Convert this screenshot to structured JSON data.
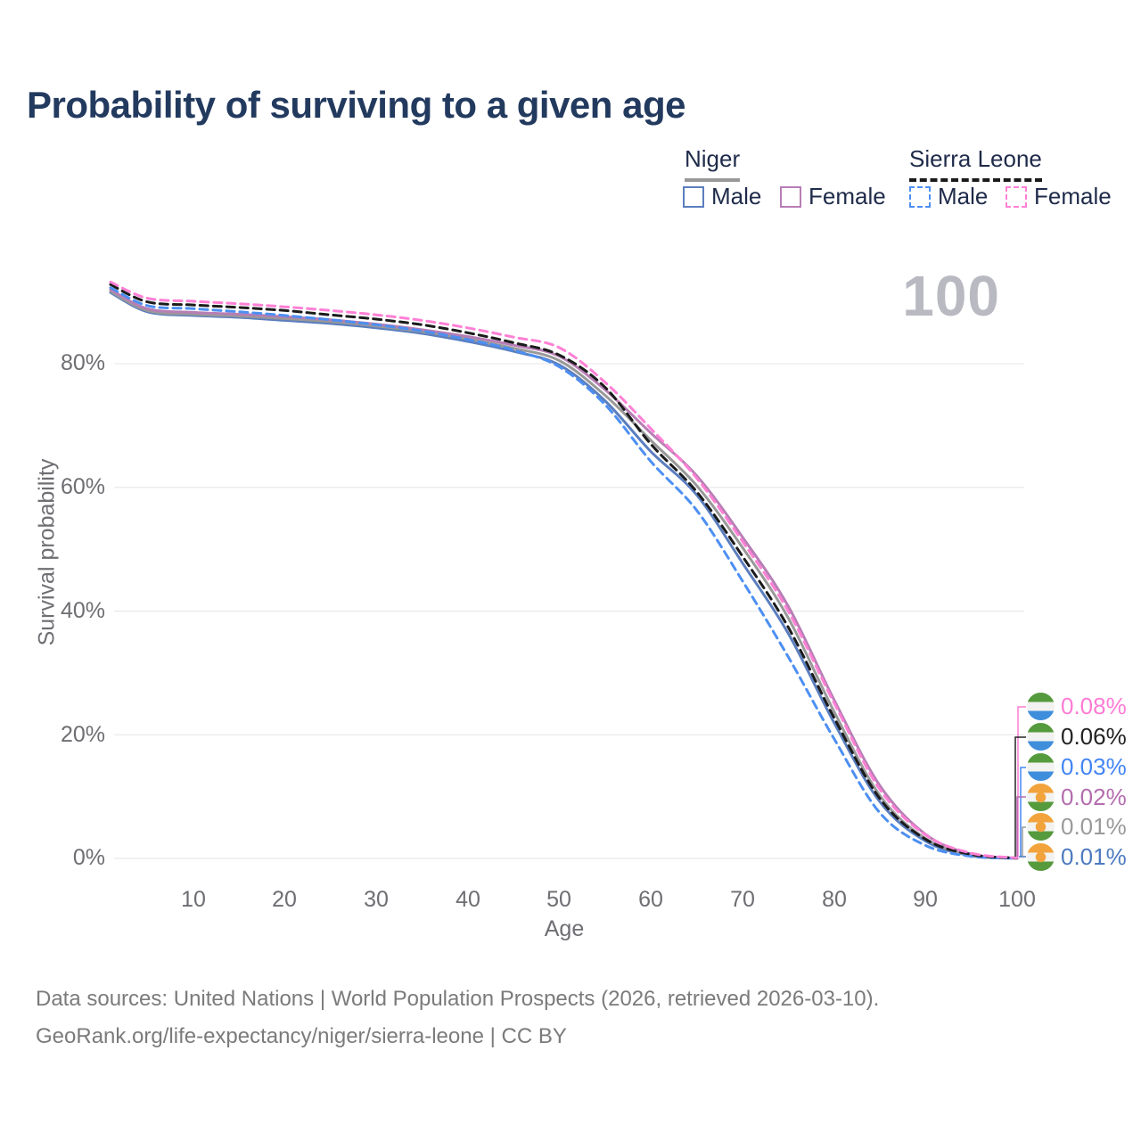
{
  "title": "Probability of surviving to a given age",
  "age_indicator": "100",
  "legend": {
    "groups": [
      {
        "label": "Niger",
        "line_style": "solid",
        "line_color": "#999999",
        "items": [
          {
            "label": "Male",
            "color": "#5B7EBE",
            "dash": false
          },
          {
            "label": "Female",
            "color": "#B77EB5",
            "dash": false
          }
        ]
      },
      {
        "label": "Sierra Leone",
        "line_style": "dashed",
        "line_color": "#1B1B1B",
        "items": [
          {
            "label": "Male",
            "color": "#4D8FF2",
            "dash": true
          },
          {
            "label": "Female",
            "color": "#FF80D5",
            "dash": true
          }
        ]
      }
    ]
  },
  "chart_data": {
    "type": "line",
    "title": "Probability of surviving to a given age",
    "xlabel": "Age",
    "ylabel": "Survival probability",
    "xlim": [
      1,
      100
    ],
    "ylim": [
      0,
      100
    ],
    "grid": "horizontal-only",
    "legend_position": "top-right",
    "x": [
      1,
      5,
      10,
      15,
      20,
      25,
      30,
      35,
      40,
      45,
      50,
      55,
      60,
      65,
      70,
      75,
      80,
      85,
      90,
      95,
      100
    ],
    "xticks": [
      10,
      20,
      30,
      40,
      50,
      60,
      70,
      80,
      90,
      100
    ],
    "xtick_labels": [
      "10",
      "20",
      "30",
      "40",
      "50",
      "60",
      "70",
      "80",
      "90",
      "100"
    ],
    "yticks": [
      0,
      20,
      40,
      60,
      80
    ],
    "ytick_labels": [
      "0%",
      "20%",
      "40%",
      "60%",
      "80%"
    ],
    "series": [
      {
        "name": "Sierra Leone — Female",
        "country": "Sierra Leone",
        "sex": "Female",
        "color": "#FF80D5",
        "dash": true,
        "end_label": "0.08%",
        "label_color": "#FF7BD4",
        "flag": "sierra-leone",
        "values": [
          93.2,
          90.6,
          90.1,
          89.7,
          89.2,
          88.6,
          87.9,
          87.0,
          85.8,
          84.3,
          82.6,
          77.0,
          69.5,
          61.5,
          51.3,
          40.0,
          25.2,
          11.2,
          3.8,
          0.85,
          0.08
        ]
      },
      {
        "name": "Sierra Leone — Both sexes",
        "country": "Sierra Leone",
        "sex": "Both",
        "color": "#1B1B1B",
        "dash": true,
        "end_label": "0.06%",
        "label_color": "#222222",
        "flag": "sierra-leone",
        "values": [
          92.8,
          90.0,
          89.5,
          89.1,
          88.6,
          87.9,
          87.2,
          86.3,
          85.0,
          83.4,
          81.4,
          76.2,
          67.0,
          59.3,
          48.9,
          37.4,
          22.8,
          9.7,
          3.1,
          0.65,
          0.06
        ]
      },
      {
        "name": "Sierra Leone — Male",
        "country": "Sierra Leone",
        "sex": "Male",
        "color": "#4D8FF2",
        "dash": true,
        "end_label": "0.03%",
        "label_color": "#4285F4",
        "flag": "sierra-leone",
        "values": [
          92.3,
          89.4,
          88.9,
          88.4,
          87.8,
          87.1,
          86.3,
          85.3,
          83.9,
          82.2,
          79.5,
          73.4,
          64.2,
          56.3,
          44.9,
          32.6,
          19.4,
          7.4,
          2.1,
          0.35,
          0.03
        ]
      },
      {
        "name": "Niger — Female",
        "country": "Niger",
        "sex": "Female",
        "color": "#B77EB5",
        "dash": false,
        "end_label": "0.02%",
        "label_color": "#B46DAE",
        "flag": "niger",
        "values": [
          92.0,
          88.9,
          88.3,
          88.0,
          87.6,
          87.1,
          86.4,
          85.5,
          84.4,
          83.0,
          81.2,
          75.8,
          68.8,
          61.9,
          52.0,
          40.8,
          25.7,
          11.8,
          3.9,
          0.7,
          0.02
        ]
      },
      {
        "name": "Niger — Both sexes",
        "country": "Niger",
        "sex": "Both",
        "color": "#999999",
        "dash": false,
        "end_label": "0.01%",
        "label_color": "#9A9A9A",
        "flag": "niger",
        "values": [
          91.7,
          88.6,
          88.0,
          87.7,
          87.3,
          86.8,
          86.1,
          85.2,
          84.0,
          82.5,
          80.5,
          74.9,
          67.6,
          60.3,
          50.3,
          38.9,
          23.8,
          10.2,
          3.2,
          0.55,
          0.01
        ]
      },
      {
        "name": "Niger — Male",
        "country": "Niger",
        "sex": "Male",
        "color": "#5B7EBE",
        "dash": false,
        "end_label": "0.01%",
        "label_color": "#4C7AC0",
        "flag": "niger",
        "values": [
          91.5,
          88.4,
          87.8,
          87.5,
          87.0,
          86.5,
          85.8,
          84.9,
          83.6,
          82.0,
          79.8,
          74.0,
          65.8,
          58.8,
          47.8,
          36.4,
          22.0,
          9.2,
          2.8,
          0.45,
          0.01
        ]
      }
    ]
  },
  "footer": {
    "line1": "Data sources: United Nations | World Population Prospects (2026, retrieved 2026-03-10).",
    "line2": "GeoRank.org/life-expectancy/niger/sierra-leone | CC BY"
  }
}
